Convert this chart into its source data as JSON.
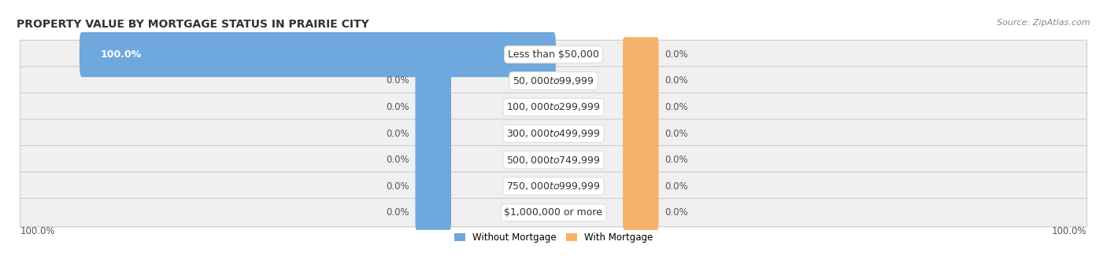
{
  "title": "PROPERTY VALUE BY MORTGAGE STATUS IN PRAIRIE CITY",
  "source": "Source: ZipAtlas.com",
  "categories": [
    "Less than $50,000",
    "$50,000 to $99,999",
    "$100,000 to $299,999",
    "$300,000 to $499,999",
    "$500,000 to $749,999",
    "$750,000 to $999,999",
    "$1,000,000 or more"
  ],
  "without_mortgage": [
    100.0,
    0.0,
    0.0,
    0.0,
    0.0,
    0.0,
    0.0
  ],
  "with_mortgage": [
    0.0,
    0.0,
    0.0,
    0.0,
    0.0,
    0.0,
    0.0
  ],
  "without_mortgage_color": "#6fa8dc",
  "with_mortgage_color": "#f6b26b",
  "title_color": "#333333",
  "source_color": "#888888",
  "legend_without": "Without Mortgage",
  "legend_with": "With Mortgage",
  "axis_label_left": "100.0%",
  "axis_label_right": "100.0%",
  "placeholder_bar_width": 7.0,
  "max_val": 100.0
}
